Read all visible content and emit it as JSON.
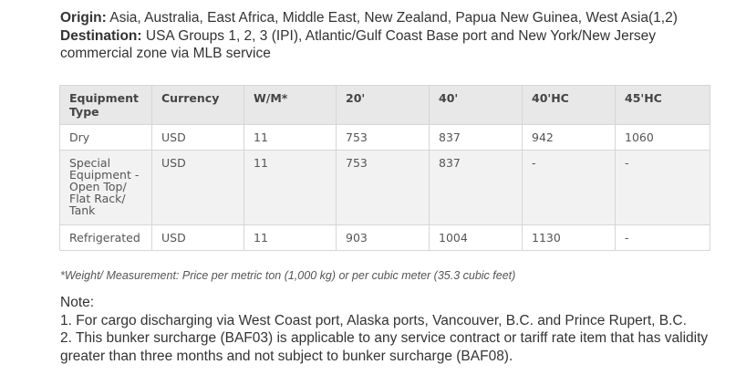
{
  "header": {
    "origin_label": "Origin:",
    "origin_value": " Asia, Australia, East Africa, Middle East, New Zealand, Papua New Guinea, West Asia(1,2)",
    "destination_label": "Destination:",
    "destination_value": " USA Groups 1, 2, 3 (IPI), Atlantic/Gulf Coast Base port and New York/New Jersey commercial zone via MLB service"
  },
  "table": {
    "columns": [
      "Equipment Type",
      "Currency",
      "W/M*",
      "20'",
      "40'",
      "40'HC",
      "45'HC"
    ],
    "rows": [
      [
        "Dry",
        "USD",
        "11",
        "753",
        "837",
        "942",
        "1060"
      ],
      [
        "Special Equipment - Open Top/ Flat Rack/ Tank",
        "USD",
        "11",
        "753",
        "837",
        "-",
        "-"
      ],
      [
        "Refrigerated",
        "USD",
        "11",
        "903",
        "1004",
        "1130",
        "-"
      ]
    ]
  },
  "footnote": "*Weight/ Measurement: Price per metric ton (1,000 kg) or per cubic meter (35.3 cubic feet)",
  "notes": {
    "title": "Note:",
    "items": [
      "1. For cargo discharging via West Coast port, Alaska ports, Vancouver, B.C. and Prince Rupert, B.C.",
      "2. This bunker surcharge (BAF03) is applicable to any service contract or tariff rate item that has validity greater than three months and not subject to bunker surcharge (BAF08)."
    ]
  }
}
